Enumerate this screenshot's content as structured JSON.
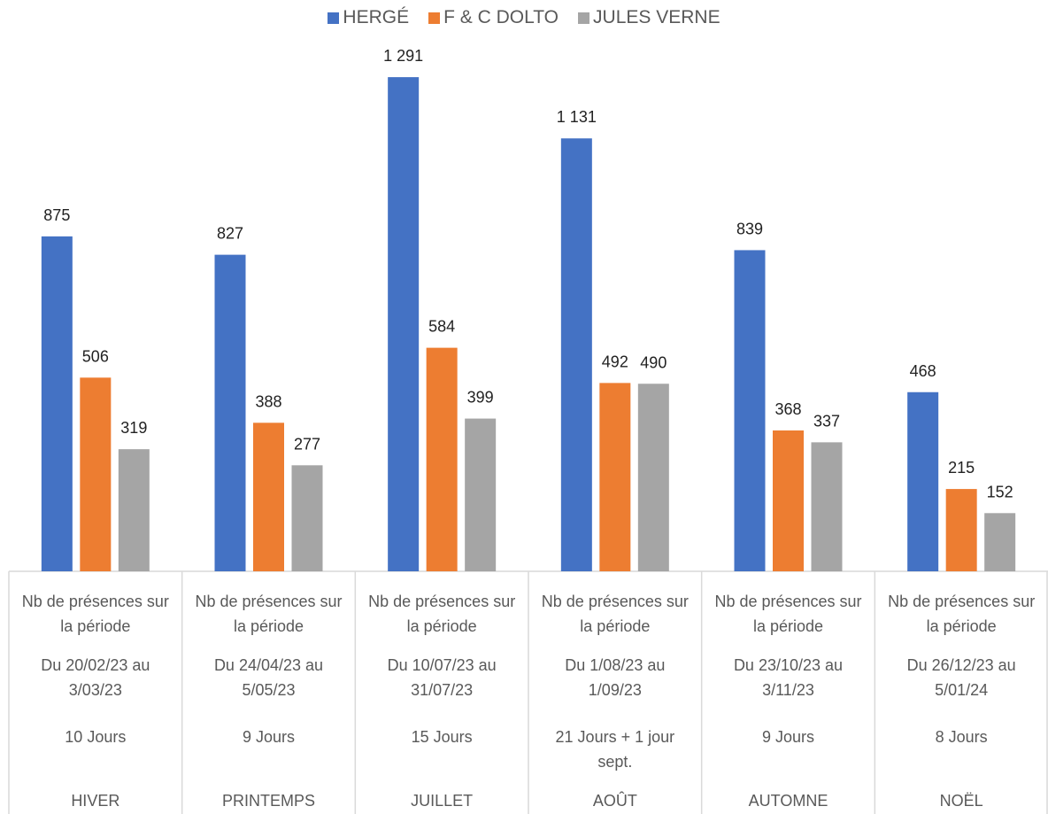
{
  "chart_data": {
    "type": "bar",
    "categories": [
      [
        "Nb de présences sur la période",
        "Du 20/02/23 au 3/03/23",
        "10 Jours",
        "HIVER"
      ],
      [
        "Nb de présences sur la période",
        "Du 24/04/23 au 5/05/23",
        "9 Jours",
        "PRINTEMPS"
      ],
      [
        "Nb de présences sur la période",
        "Du 10/07/23 au 31/07/23",
        "15 Jours",
        "JUILLET"
      ],
      [
        "Nb de présences sur la période",
        "Du 1/08/23 au 1/09/23",
        "21 Jours + 1 jour sept.",
        "AOÛT"
      ],
      [
        "Nb de présences sur la période",
        "Du 23/10/23 au 3/11/23",
        "9 Jours",
        "AUTOMNE"
      ],
      [
        "Nb de présences sur la période",
        "Du 26/12/23 au 5/01/24",
        "8 Jours",
        "NOËL"
      ]
    ],
    "series": [
      {
        "name": "HERGÉ",
        "color": "#4472c4",
        "values": [
          875,
          827,
          1291,
          1131,
          839,
          468
        ],
        "value_labels": [
          "875",
          "827",
          "1 291",
          "1 131",
          "839",
          "468"
        ]
      },
      {
        "name": "F & C DOLTO",
        "color": "#ed7d31",
        "values": [
          506,
          388,
          584,
          492,
          368,
          215
        ],
        "value_labels": [
          "506",
          "388",
          "584",
          "492",
          "368",
          "215"
        ]
      },
      {
        "name": "JULES VERNE",
        "color": "#a5a5a5",
        "values": [
          319,
          277,
          399,
          490,
          337,
          152
        ],
        "value_labels": [
          "319",
          "277",
          "399",
          "490",
          "337",
          "152"
        ]
      }
    ],
    "ylim": [
      0,
      1400
    ],
    "legend": "top"
  }
}
